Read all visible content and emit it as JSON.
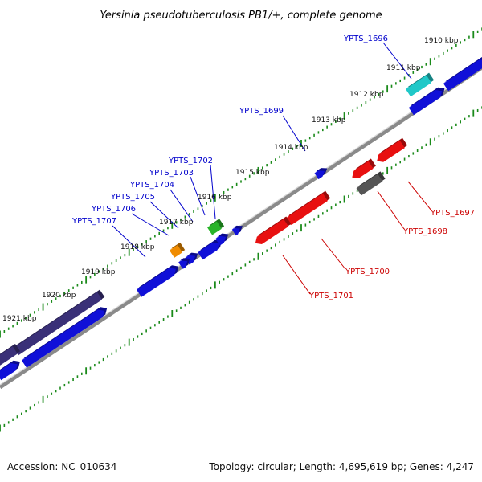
{
  "title": "Yersinia pseudotuberculosis PB1/+, complete genome",
  "ruler_labels": [
    "1910 kbp",
    "1911 kbp",
    "1912 kbp",
    "1913 kbp",
    "1914 kbp",
    "1915 kbp",
    "1916 kbp",
    "1917 kbp",
    "1918 kbp",
    "1919 kbp",
    "1920 kbp",
    "1921 kbp"
  ],
  "gene_labels": {
    "forward": [
      "YPTS_1696",
      "YPTS_1699",
      "YPTS_1702",
      "YPTS_1703",
      "YPTS_1704",
      "YPTS_1705",
      "YPTS_1706",
      "YPTS_1707"
    ],
    "reverse": [
      "YPTS_1697",
      "YPTS_1698",
      "YPTS_1700",
      "YPTS_1701"
    ]
  },
  "colors": {
    "backbone": "#8a8a8a",
    "ticks": "#1a8a1a",
    "forward_label": "#0000cc",
    "reverse_label": "#cc0000",
    "cds_blue": "#1010d8",
    "cds_red": "#e81010",
    "cds_cyan": "#20c8c8",
    "cds_green": "#28b428",
    "cds_orange": "#f08c00",
    "cds_navy": "#3a3078",
    "cds_gray": "#555555"
  },
  "footer": {
    "accession": "Accession: NC_010634",
    "stats": "Topology: circular; Length: 4,695,619 bp; Genes: 4,247"
  }
}
